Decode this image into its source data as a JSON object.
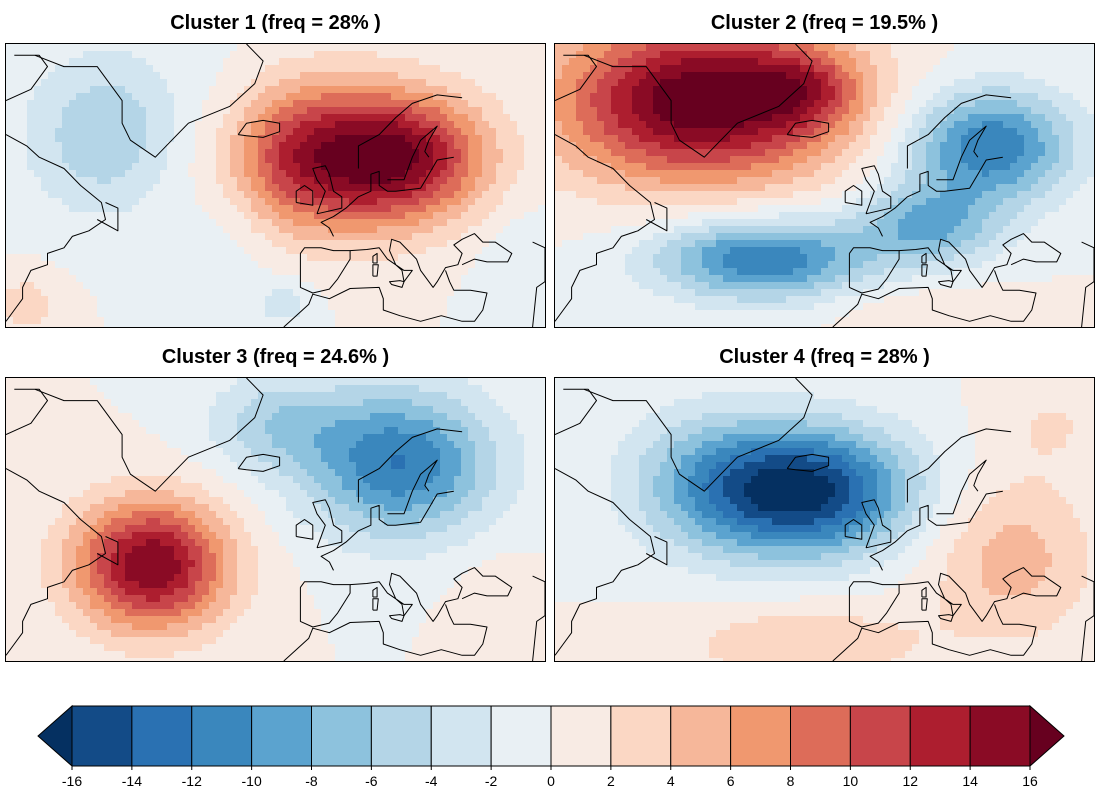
{
  "panels": [
    {
      "title": "Cluster 1 (freq = 28% )",
      "pattern": {
        "background": 0,
        "blobs": [
          {
            "lon": 0,
            "lat": 60,
            "amp": 16,
            "sx": 20,
            "sy": 9
          },
          {
            "lon": 20,
            "lat": 60,
            "amp": 6,
            "sx": 12,
            "sy": 7
          },
          {
            "lon": -55,
            "lat": 64,
            "amp": -6,
            "sx": 14,
            "sy": 10
          },
          {
            "lon": -27,
            "lat": 55,
            "amp": -2.5,
            "sx": 8,
            "sy": 14
          },
          {
            "lon": -75,
            "lat": 34,
            "amp": 3,
            "sx": 6,
            "sy": 4
          },
          {
            "lon": -13,
            "lat": 34,
            "amp": -3,
            "sx": 5,
            "sy": 3
          },
          {
            "lon": 45,
            "lat": 40,
            "amp": -2,
            "sx": 8,
            "sy": 8
          }
        ]
      }
    },
    {
      "title": "Cluster 2 (freq = 19.5% )",
      "pattern": {
        "background": 0,
        "blobs": [
          {
            "lon": -45,
            "lat": 70,
            "amp": 18,
            "sx": 24,
            "sy": 10
          },
          {
            "lon": -20,
            "lat": 72,
            "amp": 6,
            "sx": 10,
            "sy": 5
          },
          {
            "lon": -30,
            "lat": 42,
            "amp": -12,
            "sx": 18,
            "sy": 5
          },
          {
            "lon": 10,
            "lat": 48,
            "amp": -8,
            "sx": 12,
            "sy": 5
          },
          {
            "lon": 25,
            "lat": 62,
            "amp": -12,
            "sx": 14,
            "sy": 7
          },
          {
            "lon": 10,
            "lat": 32,
            "amp": 2,
            "sx": 16,
            "sy": 4
          }
        ]
      }
    },
    {
      "title": "Cluster 3 (freq = 24.6% )",
      "pattern": {
        "background": 0,
        "blobs": [
          {
            "lon": -45,
            "lat": 47,
            "amp": 16,
            "sx": 13,
            "sy": 8
          },
          {
            "lon": 15,
            "lat": 65,
            "amp": -12,
            "sx": 16,
            "sy": 9
          },
          {
            "lon": -15,
            "lat": 72,
            "amp": -5,
            "sx": 12,
            "sy": 6
          },
          {
            "lon": 40,
            "lat": 40,
            "amp": 2,
            "sx": 8,
            "sy": 6
          }
        ]
      }
    },
    {
      "title": "Cluster 4 (freq = 28% )",
      "pattern": {
        "background": 0,
        "blobs": [
          {
            "lon": -20,
            "lat": 60,
            "amp": -17,
            "sx": 18,
            "sy": 8
          },
          {
            "lon": -45,
            "lat": 62,
            "amp": -5,
            "sx": 14,
            "sy": 9
          },
          {
            "lon": -20,
            "lat": 33,
            "amp": 4,
            "sx": 20,
            "sy": 5
          },
          {
            "lon": 30,
            "lat": 48,
            "amp": 5,
            "sx": 14,
            "sy": 10
          },
          {
            "lon": 40,
            "lat": 72,
            "amp": 2,
            "sx": 10,
            "sy": 6
          }
        ]
      }
    }
  ],
  "colorbar": {
    "tick_labels": [
      "-16",
      "-14",
      "-12",
      "-10",
      "-8",
      "-6",
      "-4",
      "-2",
      "0",
      "2",
      "4",
      "6",
      "8",
      "10",
      "12",
      "14",
      "16"
    ],
    "min": -16,
    "max": 16,
    "colors": [
      "#053061",
      "#134b87",
      "#2a71b2",
      "#3a87bd",
      "#5ba3cf",
      "#8dc2dd",
      "#b4d5e7",
      "#d2e5f0",
      "#e9f0f4",
      "#f8ebe4",
      "#fbd7c4",
      "#f6b79a",
      "#f0986f",
      "#dd6c59",
      "#c8454a",
      "#ad1e2f",
      "#8a0b25",
      "#67001f"
    ]
  },
  "map_extent": {
    "lon": [
      -80,
      50
    ],
    "lat": [
      30,
      80
    ]
  }
}
